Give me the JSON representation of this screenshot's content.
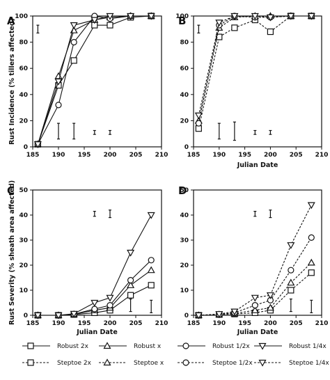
{
  "chart_data": [
    {
      "panel": "A",
      "type": "line",
      "ylabel": "Rust Incidence (% tillers affected)",
      "xlabel": "",
      "xlim": [
        185,
        210
      ],
      "ylim": [
        0,
        100
      ],
      "x_ticks": [
        185,
        190,
        195,
        200,
        205,
        210
      ],
      "y_ticks": [
        0,
        20,
        40,
        60,
        80,
        100
      ],
      "series": [
        {
          "name": "Robust 2x",
          "style": "solid",
          "marker": "square",
          "x": [
            186,
            190,
            193,
            197,
            200,
            204,
            208
          ],
          "y": [
            2,
            47,
            66,
            93,
            93,
            99,
            100
          ]
        },
        {
          "name": "Robust x",
          "style": "solid",
          "marker": "triangle-up",
          "x": [
            186,
            190,
            193,
            197,
            200,
            204,
            208
          ],
          "y": [
            2,
            54,
            89,
            97,
            99,
            100,
            100
          ]
        },
        {
          "name": "Robust 1/2x",
          "style": "solid",
          "marker": "circle",
          "x": [
            186,
            190,
            193,
            197,
            200,
            204,
            208
          ],
          "y": [
            2,
            32,
            80,
            100,
            98,
            100,
            100
          ]
        },
        {
          "name": "Robust 1/4x",
          "style": "solid",
          "marker": "triangle-down",
          "x": [
            186,
            190,
            193,
            197,
            200,
            204,
            208
          ],
          "y": [
            2,
            50,
            93,
            97,
            100,
            100,
            100
          ]
        }
      ],
      "error_bars": [
        {
          "x": 186,
          "center": 90,
          "half": 3
        },
        {
          "x": 190,
          "center": 12,
          "half": 6
        },
        {
          "x": 193,
          "center": 12,
          "half": 6
        },
        {
          "x": 197,
          "center": 11,
          "half": 1.5
        },
        {
          "x": 200,
          "center": 11,
          "half": 1.5
        }
      ]
    },
    {
      "panel": "B",
      "type": "line",
      "ylabel": "",
      "xlabel": "Julian Date",
      "xlim": [
        185,
        210
      ],
      "ylim": [
        0,
        100
      ],
      "x_ticks": [
        185,
        190,
        195,
        200,
        205,
        210
      ],
      "y_ticks": [
        0,
        20,
        40,
        60,
        80,
        100
      ],
      "series": [
        {
          "name": "Steptoe 2x",
          "style": "dashed",
          "marker": "square",
          "x": [
            186,
            190,
            193,
            197,
            200,
            204,
            208
          ],
          "y": [
            14,
            84,
            91,
            97,
            88,
            100,
            100
          ]
        },
        {
          "name": "Steptoe x",
          "style": "dashed",
          "marker": "triangle-up",
          "x": [
            186,
            190,
            193,
            197,
            200,
            204,
            208
          ],
          "y": [
            20,
            91,
            99,
            100,
            100,
            100,
            100
          ]
        },
        {
          "name": "Steptoe 1/2x",
          "style": "dashed",
          "marker": "circle",
          "x": [
            186,
            190,
            193,
            197,
            200,
            204,
            208
          ],
          "y": [
            18,
            93,
            100,
            99,
            99,
            100,
            100
          ]
        },
        {
          "name": "Steptoe 1/4x",
          "style": "dashed",
          "marker": "triangle-down",
          "x": [
            186,
            190,
            193,
            197,
            200,
            204,
            208
          ],
          "y": [
            24,
            95,
            100,
            100,
            99,
            100,
            100
          ]
        }
      ],
      "error_bars": [
        {
          "x": 186,
          "center": 90,
          "half": 3
        },
        {
          "x": 190,
          "center": 12,
          "half": 6
        },
        {
          "x": 193,
          "center": 12,
          "half": 7
        },
        {
          "x": 197,
          "center": 11,
          "half": 1.5
        },
        {
          "x": 200,
          "center": 11,
          "half": 1.5
        }
      ]
    },
    {
      "panel": "C",
      "type": "line",
      "ylabel": "Rust Severity (% sheath area affected)",
      "xlabel": "Julian Date",
      "xlim": [
        185,
        210
      ],
      "ylim": [
        0,
        50
      ],
      "x_ticks": [
        185,
        190,
        195,
        200,
        205,
        210
      ],
      "y_ticks": [
        0,
        10,
        20,
        30,
        40,
        50
      ],
      "series": [
        {
          "name": "Robust 2x",
          "style": "solid",
          "marker": "square",
          "x": [
            186,
            190,
            193,
            197,
            200,
            204,
            208
          ],
          "y": [
            0,
            0,
            0.3,
            1,
            2,
            8,
            12
          ]
        },
        {
          "name": "Robust x",
          "style": "solid",
          "marker": "triangle-up",
          "x": [
            186,
            190,
            193,
            197,
            200,
            204,
            208
          ],
          "y": [
            0,
            0,
            0.4,
            2,
            3,
            12,
            18
          ]
        },
        {
          "name": "Robust 1/2x",
          "style": "solid",
          "marker": "circle",
          "x": [
            186,
            190,
            193,
            197,
            200,
            204,
            208
          ],
          "y": [
            0,
            0,
            0.4,
            2.5,
            4,
            14,
            22
          ]
        },
        {
          "name": "Robust 1/4x",
          "style": "solid",
          "marker": "triangle-down",
          "x": [
            186,
            190,
            193,
            197,
            200,
            204,
            208
          ],
          "y": [
            0,
            0,
            0.6,
            5,
            7,
            25,
            40
          ]
        }
      ],
      "error_bars": [
        {
          "x": 197,
          "center": 40.5,
          "half": 1
        },
        {
          "x": 200,
          "center": 40.5,
          "half": 1.5
        },
        {
          "x": 204,
          "center": 4,
          "half": 2.5
        },
        {
          "x": 208,
          "center": 3.5,
          "half": 2.5
        }
      ]
    },
    {
      "panel": "D",
      "type": "line",
      "ylabel": "",
      "xlabel": "Julian Date",
      "xlim": [
        185,
        210
      ],
      "ylim": [
        0,
        50
      ],
      "x_ticks": [
        185,
        190,
        195,
        200,
        205,
        210
      ],
      "y_ticks": [
        0,
        10,
        20,
        30,
        40,
        50
      ],
      "series": [
        {
          "name": "Steptoe 2x",
          "style": "dashed",
          "marker": "square",
          "x": [
            186,
            190,
            193,
            197,
            200,
            204,
            208
          ],
          "y": [
            0,
            0.3,
            0.5,
            1,
            2,
            10,
            17
          ]
        },
        {
          "name": "Steptoe x",
          "style": "dashed",
          "marker": "triangle-up",
          "x": [
            186,
            190,
            193,
            197,
            200,
            204,
            208
          ],
          "y": [
            0,
            0.3,
            0.7,
            2,
            3,
            13,
            21
          ]
        },
        {
          "name": "Steptoe 1/2x",
          "style": "dashed",
          "marker": "circle",
          "x": [
            186,
            190,
            193,
            197,
            200,
            204,
            208
          ],
          "y": [
            0,
            0.3,
            1,
            4,
            6,
            18,
            31
          ]
        },
        {
          "name": "Steptoe 1/4x",
          "style": "dashed",
          "marker": "triangle-down",
          "x": [
            186,
            190,
            193,
            197,
            200,
            204,
            208
          ],
          "y": [
            0,
            0.5,
            1.5,
            7,
            8,
            28,
            44
          ]
        }
      ],
      "error_bars": [
        {
          "x": 197,
          "center": 40.5,
          "half": 1
        },
        {
          "x": 200,
          "center": 40.5,
          "half": 1.5
        },
        {
          "x": 204,
          "center": 4,
          "half": 2.5
        },
        {
          "x": 208,
          "center": 3.5,
          "half": 2.5
        }
      ]
    }
  ],
  "legend": [
    {
      "name": "Robust 2x",
      "style": "solid",
      "marker": "square"
    },
    {
      "name": "Robust x",
      "style": "solid",
      "marker": "triangle-up"
    },
    {
      "name": "Robust 1/2x",
      "style": "solid",
      "marker": "circle"
    },
    {
      "name": "Robust 1/4x",
      "style": "solid",
      "marker": "triangle-down"
    },
    {
      "name": "Steptoe 2x",
      "style": "dashed",
      "marker": "square"
    },
    {
      "name": "Steptoe x",
      "style": "dashed",
      "marker": "triangle-up"
    },
    {
      "name": "Steptoe 1/2x",
      "style": "dashed",
      "marker": "circle"
    },
    {
      "name": "Steptoe 1/4x",
      "style": "dashed",
      "marker": "triangle-down"
    }
  ],
  "colors": {
    "ink": "#111111",
    "background": "#ffffff"
  }
}
